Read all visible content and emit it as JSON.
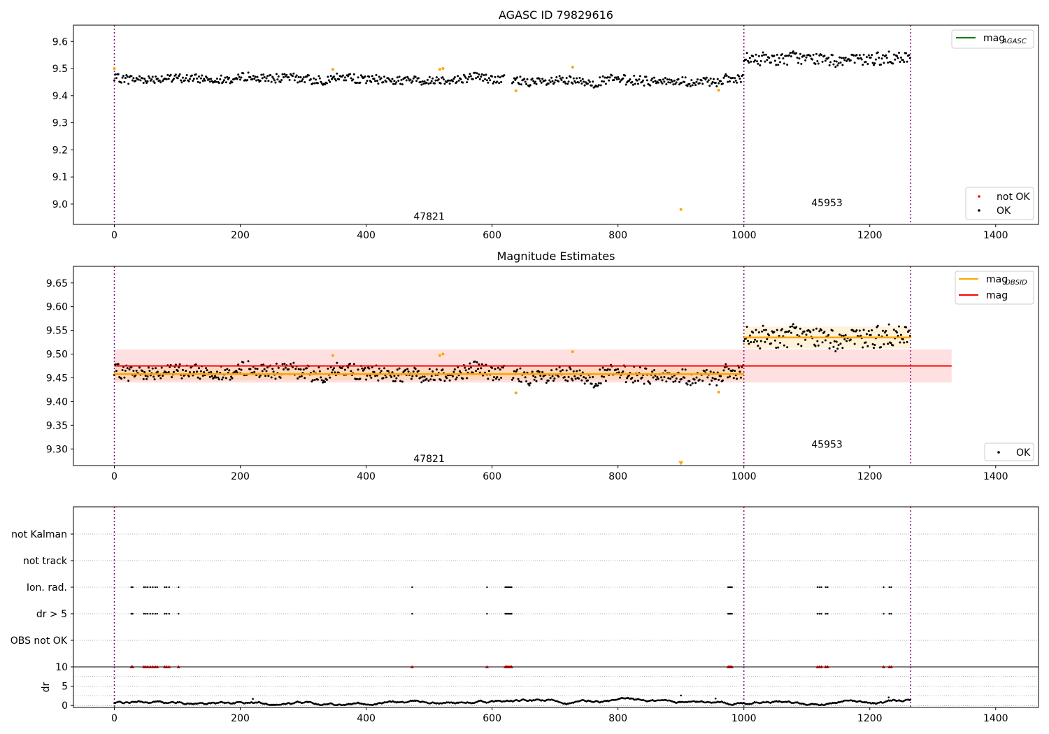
{
  "chart_data": [
    {
      "type": "scatter",
      "title": "AGASC ID 79829616",
      "xlim": [
        -65,
        1468
      ],
      "ylim": [
        8.925,
        9.66
      ],
      "xticks": [
        0,
        200,
        400,
        600,
        800,
        1000,
        1200,
        1400
      ],
      "yticks": [
        9.0,
        9.1,
        9.2,
        9.3,
        9.4,
        9.5,
        9.6
      ],
      "obsid_boundaries": [
        0,
        1000,
        1265
      ],
      "obsid_labels": [
        {
          "text": "47821",
          "x": 500,
          "y": 8.955
        },
        {
          "text": "45953",
          "x": 1132,
          "y": 9.005
        }
      ],
      "legend_top": {
        "position": "top-right",
        "entries": [
          {
            "label": "mag",
            "sub": "AGASC",
            "color": "#008000"
          }
        ]
      },
      "legend_bottom": {
        "position": "bottom-right",
        "entries": [
          {
            "label": "not OK",
            "color": "#ff0000"
          },
          {
            "label": "OK",
            "color": "#000000"
          }
        ]
      },
      "series": [
        {
          "name": "OK",
          "color": "#000000",
          "segments": [
            {
              "x0": 0,
              "x1": 620,
              "mean": 9.462,
              "amp": 0.02
            },
            {
              "x0": 632,
              "x1": 1000,
              "mean": 9.455,
              "amp": 0.022
            },
            {
              "x0": 1000,
              "x1": 1265,
              "mean": 9.535,
              "amp": 0.028
            }
          ]
        },
        {
          "name": "outliers",
          "color": "#ffa500",
          "points": [
            [
              0,
              9.5
            ],
            [
              347,
              9.497
            ],
            [
              517,
              9.497
            ],
            [
              522,
              9.5
            ],
            [
              638,
              9.418
            ],
            [
              728,
              9.505
            ],
            [
              900,
              8.98
            ],
            [
              960,
              9.42
            ]
          ]
        }
      ]
    },
    {
      "type": "scatter",
      "title": "Magnitude Estimates",
      "xlim": [
        -65,
        1468
      ],
      "ylim": [
        9.265,
        9.685
      ],
      "xticks": [
        0,
        200,
        400,
        600,
        800,
        1000,
        1200,
        1400
      ],
      "yticks": [
        9.3,
        9.35,
        9.4,
        9.45,
        9.5,
        9.55,
        9.6,
        9.65
      ],
      "ytick_labels": [
        "9.30",
        "9.35",
        "9.40",
        "9.45",
        "9.50",
        "9.55",
        "9.60",
        "9.65"
      ],
      "obsid_boundaries": [
        0,
        1000,
        1265
      ],
      "obsid_labels": [
        {
          "text": "47821",
          "x": 500,
          "y": 9.28
        },
        {
          "text": "45953",
          "x": 1132,
          "y": 9.31
        }
      ],
      "mag": {
        "value": 9.475,
        "band": [
          9.44,
          9.51
        ],
        "x0": 0,
        "x1": 1330,
        "color": "#ff0000"
      },
      "mag_obsid": [
        {
          "x0": 0,
          "x1": 1000,
          "value": 9.458,
          "band": [
            9.445,
            9.472
          ]
        },
        {
          "x0": 1000,
          "x1": 1265,
          "value": 9.535,
          "band": [
            9.512,
            9.558
          ]
        }
      ],
      "legend_top": {
        "position": "top-right",
        "entries": [
          {
            "label": "mag",
            "sub": "OBSID",
            "color": "#ffa500"
          },
          {
            "label": "mag",
            "sub": "",
            "color": "#ff0000"
          }
        ]
      },
      "legend_bottom": {
        "position": "bottom-right",
        "entries": [
          {
            "label": "OK",
            "color": "#000000"
          }
        ]
      },
      "outliers": [
        [
          347,
          9.497
        ],
        [
          517,
          9.497
        ],
        [
          522,
          9.5
        ],
        [
          638,
          9.418
        ],
        [
          728,
          9.505
        ],
        [
          960,
          9.42
        ]
      ],
      "offscale_marker": {
        "x": 900,
        "y": 9.27
      }
    },
    {
      "type": "scatter",
      "categories": [
        "not Kalman",
        "not track",
        "Ion. rad.",
        "dr > 5",
        "OBS not OK"
      ],
      "xlim": [
        -65,
        1468
      ],
      "obsid_boundaries": [
        0,
        1000,
        1265
      ],
      "flag_times": [
        27,
        29,
        47,
        50,
        53,
        57,
        61,
        65,
        68,
        80,
        83,
        87,
        102,
        473,
        592,
        621,
        623,
        625,
        627,
        629,
        631,
        975,
        977,
        979,
        981,
        1117,
        1120,
        1123,
        1130,
        1133,
        1222,
        1231,
        1234
      ]
    },
    {
      "type": "scatter",
      "ylabel": "dr",
      "ylim": [
        -0.5,
        10
      ],
      "yticks": [
        0,
        5,
        10
      ],
      "xlim": [
        -65,
        1468
      ],
      "xticks": [
        0,
        200,
        400,
        600,
        800,
        1000,
        1200,
        1400
      ],
      "obsid_boundaries": [
        0,
        1000,
        1265
      ],
      "points_spikes": [
        [
          220,
          1.7
        ],
        [
          900,
          2.6
        ],
        [
          955,
          1.8
        ],
        [
          1230,
          2.1
        ]
      ],
      "flag_markers_at_10": true
    }
  ]
}
